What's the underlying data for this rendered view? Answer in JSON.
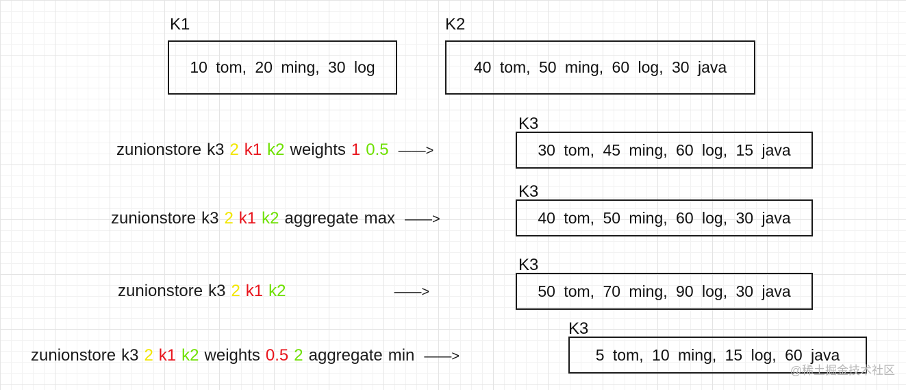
{
  "keys": {
    "k1": {
      "label": "K1",
      "content": "10 tom, 20 ming, 30 log"
    },
    "k2": {
      "label": "K2",
      "content": "40 tom, 50 ming, 60 log, 30 java"
    }
  },
  "rows": [
    {
      "tokens": [
        {
          "text": "zunionstore",
          "color": "dark"
        },
        {
          "text": "k3",
          "color": "dark"
        },
        {
          "text": "2",
          "color": "yellow"
        },
        {
          "text": "k1",
          "color": "red"
        },
        {
          "text": "k2",
          "color": "green"
        },
        {
          "text": "weights",
          "color": "dark"
        },
        {
          "text": "1",
          "color": "red"
        },
        {
          "text": "0.5",
          "color": "green"
        }
      ],
      "arrow": "——>",
      "result_label": "K3",
      "result": "30 tom, 45 ming, 60 log, 15 java"
    },
    {
      "tokens": [
        {
          "text": "zunionstore",
          "color": "dark"
        },
        {
          "text": "k3",
          "color": "dark"
        },
        {
          "text": "2",
          "color": "yellow"
        },
        {
          "text": "k1",
          "color": "red"
        },
        {
          "text": "k2",
          "color": "green"
        },
        {
          "text": "aggregate",
          "color": "dark"
        },
        {
          "text": "max",
          "color": "dark"
        }
      ],
      "arrow": "——>",
      "result_label": "K3",
      "result": "40 tom, 50 ming, 60 log, 30 java"
    },
    {
      "tokens": [
        {
          "text": "zunionstore",
          "color": "dark"
        },
        {
          "text": "k3",
          "color": "dark"
        },
        {
          "text": "2",
          "color": "yellow"
        },
        {
          "text": "k1",
          "color": "red"
        },
        {
          "text": "k2",
          "color": "green"
        }
      ],
      "arrow": "——>",
      "result_label": "K3",
      "result": "50 tom, 70 ming, 90 log, 30 java"
    },
    {
      "tokens": [
        {
          "text": "zunionstore",
          "color": "dark"
        },
        {
          "text": "k3",
          "color": "dark"
        },
        {
          "text": "2",
          "color": "yellow"
        },
        {
          "text": "k1",
          "color": "red"
        },
        {
          "text": "k2",
          "color": "green"
        },
        {
          "text": "weights",
          "color": "dark"
        },
        {
          "text": "0.5",
          "color": "red"
        },
        {
          "text": "2",
          "color": "green"
        },
        {
          "text": "aggregate",
          "color": "dark"
        },
        {
          "text": "min",
          "color": "dark"
        }
      ],
      "arrow": "——>",
      "result_label": "K3",
      "result": "5 tom, 10 ming, 15 log, 60 java"
    }
  ],
  "colors": {
    "dark": "#1a1a1a",
    "yellow": "#f2e600",
    "red": "#e8141c",
    "green": "#6ee000"
  },
  "watermark": "@稀土掘金技术社区"
}
